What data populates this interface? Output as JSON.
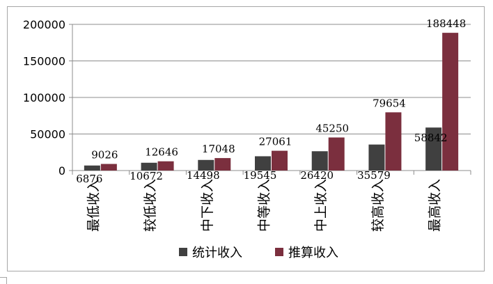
{
  "chart_data": {
    "type": "bar",
    "categories": [
      "最低收入",
      "较低收入",
      "中下收入",
      "中等收入",
      "中上收入",
      "较高收入",
      "最高收入"
    ],
    "series": [
      {
        "name": "统计收入",
        "values": [
          6876,
          10672,
          14498,
          19545,
          26420,
          35579,
          58842
        ],
        "color": "#404040"
      },
      {
        "name": "推算收入",
        "values": [
          9026,
          12646,
          17048,
          27061,
          45250,
          79654,
          188448
        ],
        "color": "#7b2f3e"
      }
    ],
    "yticks": [
      "0",
      "50000",
      "100000",
      "150000",
      "200000"
    ],
    "ylim": [
      0,
      200000
    ],
    "grid": true,
    "legend": "bottom",
    "title": "",
    "xlabel": "",
    "ylabel": ""
  }
}
